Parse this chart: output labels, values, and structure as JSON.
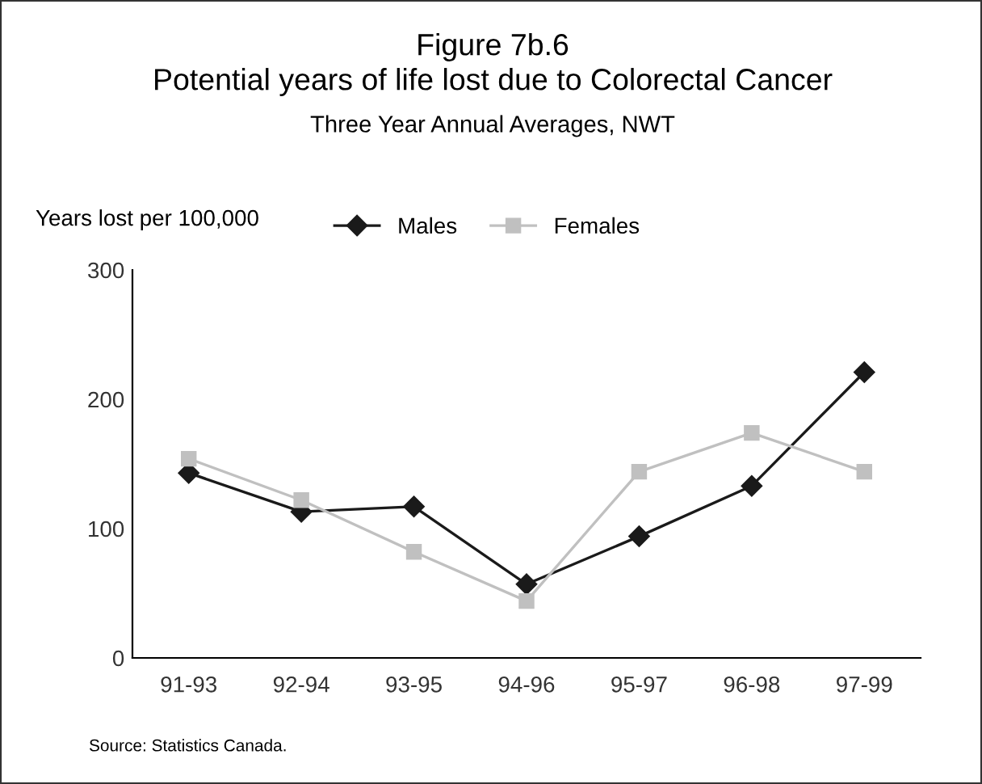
{
  "chart_data": {
    "type": "line",
    "title": "Figure 7b.6\nPotential years of life lost due to Colorectal Cancer",
    "subtitle": "Three Year Annual Averages, NWT",
    "ylabel": "Years lost per 100,000",
    "categories": [
      "91-93",
      "92-94",
      "93-95",
      "94-96",
      "95-97",
      "96-98",
      "97-99"
    ],
    "series": [
      {
        "name": "Males",
        "color": "#1a1a1a",
        "marker": "diamond",
        "values": [
          143,
          113,
          117,
          57,
          94,
          133,
          221
        ]
      },
      {
        "name": "Females",
        "color": "#c0c0c0",
        "marker": "square",
        "values": [
          154,
          122,
          82,
          44,
          144,
          174,
          144
        ]
      }
    ],
    "ylim": [
      0,
      300
    ],
    "yticks": [
      0,
      100,
      200,
      300
    ],
    "grid": false,
    "legend": "top",
    "annotations": [
      "Source: Statistics Canada."
    ]
  }
}
